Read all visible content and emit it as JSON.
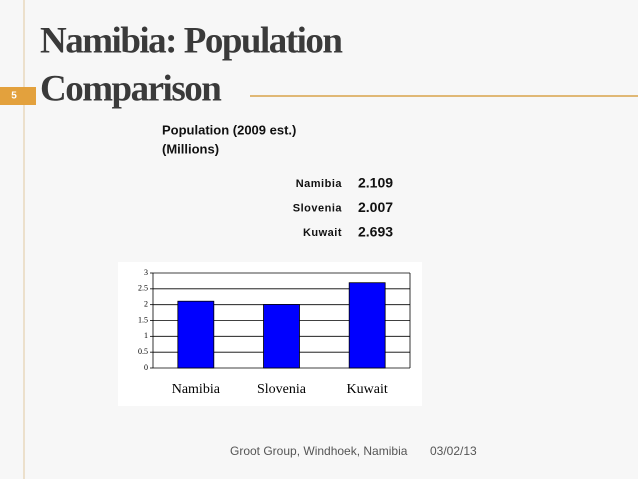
{
  "slide_number": "5",
  "title": [
    "Namibia: Population",
    "Comparison"
  ],
  "subtitle": [
    "Population (2009 est.)",
    "(Millions)"
  ],
  "table": {
    "rows": [
      [
        "Namibia",
        "2.109"
      ],
      [
        "Slovenia",
        "2.007"
      ],
      [
        "Kuwait",
        "2.693"
      ]
    ]
  },
  "chart_data": {
    "type": "bar",
    "categories": [
      "Namibia",
      "Slovenia",
      "Kuwait"
    ],
    "values": [
      2.109,
      2.007,
      2.693
    ],
    "color": "#0000ff",
    "ylim": [
      0,
      3
    ],
    "yticks": [
      0,
      0.5,
      1,
      1.5,
      2,
      2.5,
      3
    ],
    "grid": true
  },
  "footer": "Groot Group, Windhoek, Namibia",
  "date": "03/02/13"
}
